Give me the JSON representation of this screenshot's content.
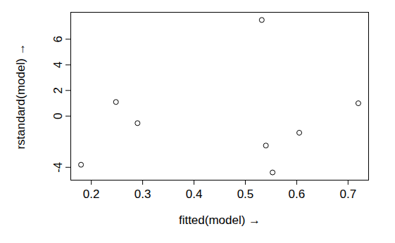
{
  "chart_data": {
    "type": "scatter",
    "x_label": "fitted(model)",
    "y_label": "rstandard(model)",
    "x": [
      0.18,
      0.248,
      0.29,
      0.532,
      0.54,
      0.553,
      0.605,
      0.72
    ],
    "values": [
      -3.8,
      1.1,
      -0.55,
      7.5,
      -2.3,
      -4.4,
      -1.3,
      1.0
    ],
    "color": "#000000",
    "marker": "open_circle",
    "xlim": [
      0.16,
      0.74
    ],
    "xticks": [
      0.2,
      0.3,
      0.4,
      0.5,
      0.6,
      0.7
    ],
    "ylim": [
      -5.0,
      8.1
    ],
    "yticks": [
      -4,
      0,
      2,
      4,
      6
    ],
    "grid": false
  }
}
